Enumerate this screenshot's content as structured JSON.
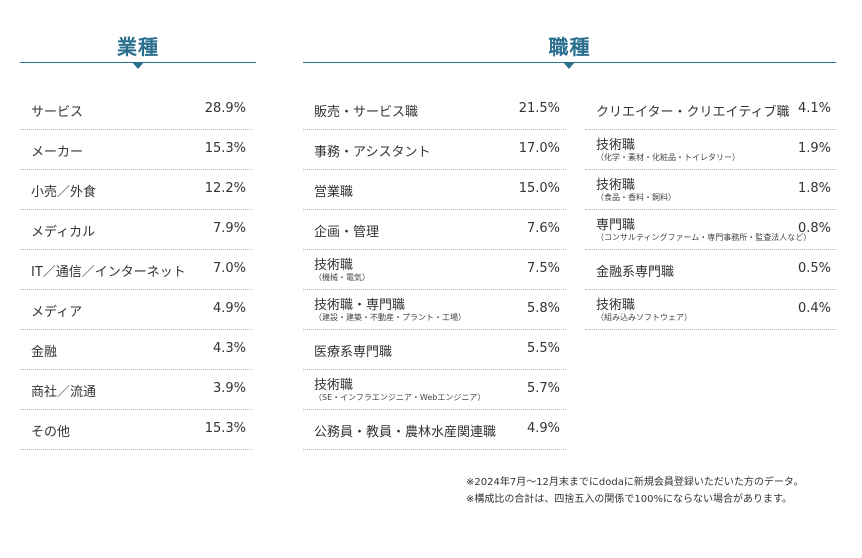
{
  "industry": {
    "title": "業種",
    "rows": [
      {
        "label": "サービス",
        "value": "28.9%"
      },
      {
        "label": "メーカー",
        "value": "15.3%"
      },
      {
        "label": "小売／外食",
        "value": "12.2%"
      },
      {
        "label": "メディカル",
        "value": "7.9%"
      },
      {
        "label": "IT／通信／インターネット",
        "value": "7.0%"
      },
      {
        "label": "メディア",
        "value": "4.9%"
      },
      {
        "label": "金融",
        "value": "4.3%"
      },
      {
        "label": "商社／流通",
        "value": "3.9%"
      },
      {
        "label": "その他",
        "value": "15.3%"
      }
    ]
  },
  "occupation": {
    "title": "職種",
    "left_rows": [
      {
        "label": "販売・サービス職",
        "sub": "",
        "value": "21.5%"
      },
      {
        "label": "事務・アシスタント",
        "sub": "",
        "value": "17.0%"
      },
      {
        "label": "営業職",
        "sub": "",
        "value": "15.0%"
      },
      {
        "label": "企画・管理",
        "sub": "",
        "value": "7.6%"
      },
      {
        "label": "技術職",
        "sub": "（機械・電気）",
        "value": "7.5%"
      },
      {
        "label": "技術職・専門職",
        "sub": "（建設・建築・不動産・プラント・工場）",
        "value": "5.8%"
      },
      {
        "label": "医療系専門職",
        "sub": "",
        "value": "5.5%"
      },
      {
        "label": "技術職",
        "sub": "（SE・インフラエンジニア・Webエンジニア）",
        "value": "5.7%"
      },
      {
        "label": "公務員・教員・農林水産関連職",
        "sub": "",
        "value": "4.9%"
      }
    ],
    "right_rows": [
      {
        "label": "クリエイター・クリエイティブ職",
        "sub": "",
        "value": "4.1%"
      },
      {
        "label": "技術職",
        "sub": "（化学・素材・化粧品・トイレタリー）",
        "value": "1.9%"
      },
      {
        "label": "技術職",
        "sub": "（食品・香料・飼料）",
        "value": "1.8%"
      },
      {
        "label": "専門職",
        "sub": "（コンサルティングファーム・専門事務所・監査法人など）",
        "value": "0.8%"
      },
      {
        "label": "金融系専門職",
        "sub": "",
        "value": "0.5%"
      },
      {
        "label": "技術職",
        "sub": "（組み込みソフトウェア）",
        "value": "0.4%"
      }
    ]
  },
  "notes": [
    "※2024年7月～12月末までにdodaに新規会員登録いただいた方のデータ。",
    "※構成比の合計は、四捨五入の関係で100%にならない場合があります。"
  ]
}
